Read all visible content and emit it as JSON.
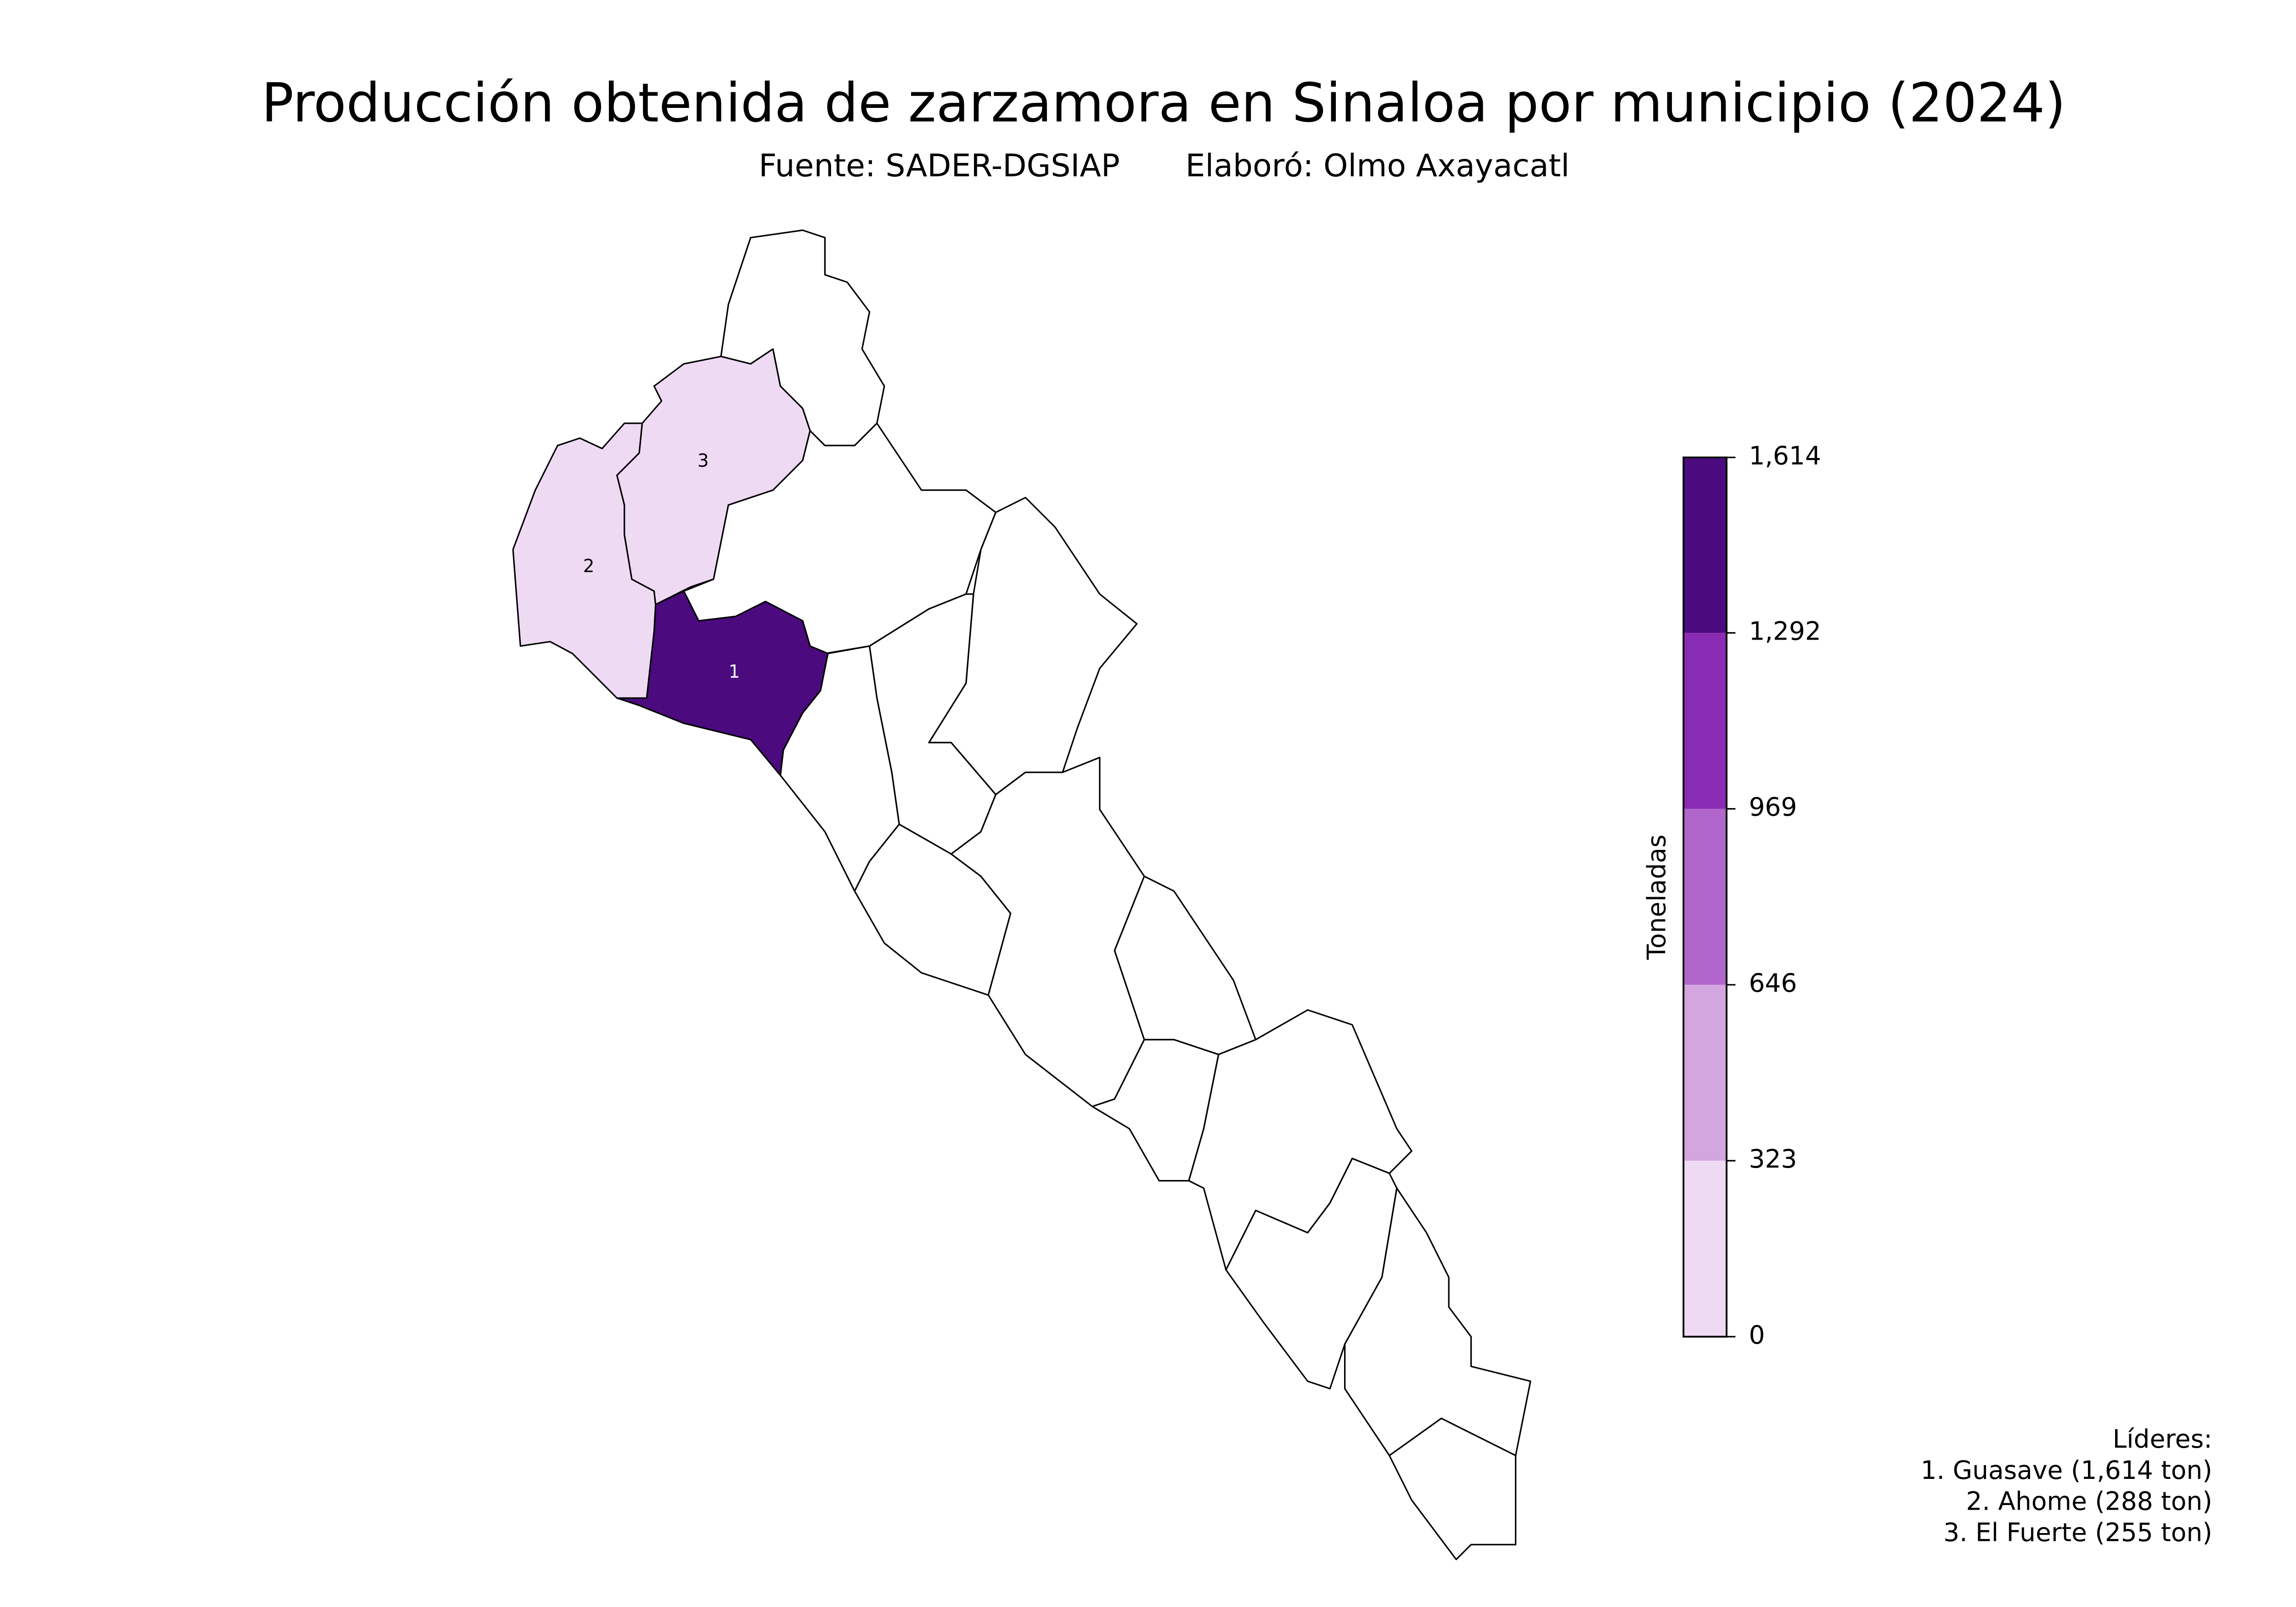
{
  "title": "Producción obtenida de zarzamora en Sinaloa por municipio (2024)",
  "source": "Fuente: SADER-DGSIAP",
  "author": "Elaboró: Olmo Axayacatl",
  "colorbar": {
    "label": "Toneladas",
    "lim": [
      0,
      1614
    ],
    "ticks": [
      0,
      323,
      646,
      969,
      {
        "value": 1292,
        "label": "1,292"
      },
      {
        "value": 1614,
        "label": "1,614"
      }
    ],
    "colors": [
      "#efdaf4",
      "#d3a6e0",
      "#b066cb",
      "#8a2bb3",
      "#4b0a7e"
    ]
  },
  "leaders": {
    "title": "Líderes:",
    "items": [
      {
        "rank": 1,
        "text": "1. Guasave (1,614 ton)",
        "value": 1614
      },
      {
        "rank": 2,
        "text": "2. Ahome (288 ton)",
        "value": 288
      },
      {
        "rank": 3,
        "text": "3. El Fuerte (255 ton)",
        "value": 255
      }
    ]
  }
}
